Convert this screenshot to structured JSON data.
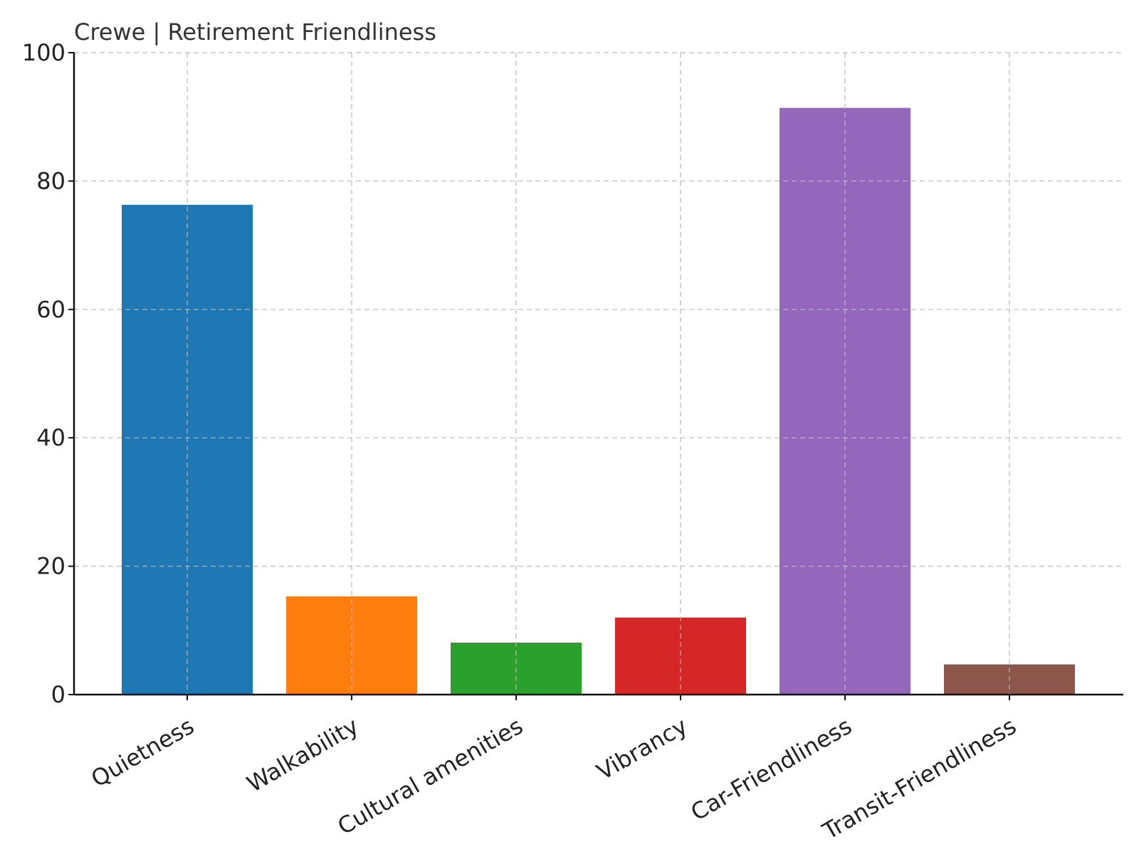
{
  "chart_data": {
    "type": "bar",
    "title": "Crewe | Retirement Friendliness",
    "xlabel": "",
    "ylabel": "",
    "categories": [
      "Quietness",
      "Walkability",
      "Cultural amenities",
      "Vibrancy",
      "Car-Friendliness",
      "Transit-Friendliness"
    ],
    "values": [
      76.3,
      15.3,
      8.1,
      12.0,
      91.4,
      4.7
    ],
    "colors": [
      "#1f77b4",
      "#ff7f0e",
      "#2ca02c",
      "#d62728",
      "#9467bd",
      "#8c564b"
    ],
    "ylim": [
      0,
      100
    ],
    "yticks": [
      0,
      20,
      40,
      60,
      80,
      100
    ],
    "grid": true,
    "legend": "none"
  }
}
